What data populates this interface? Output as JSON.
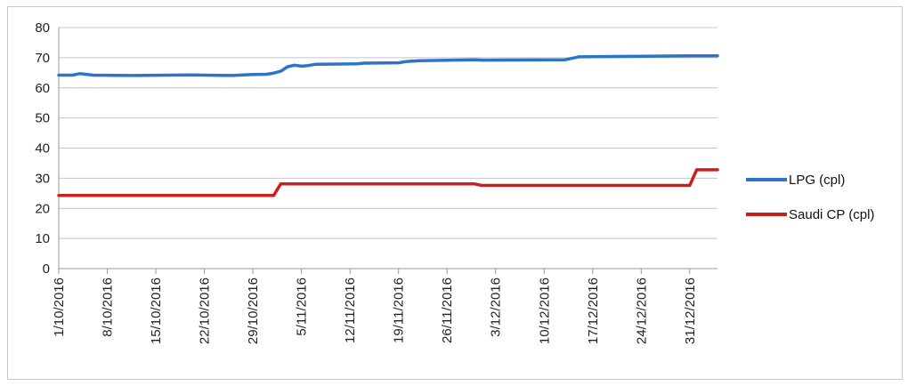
{
  "chart_data": {
    "type": "line",
    "title": "",
    "xlabel": "",
    "ylabel": "",
    "ylim": [
      0,
      80
    ],
    "yticks": [
      0,
      10,
      20,
      30,
      40,
      50,
      60,
      70,
      80
    ],
    "x_start": "1/10/2016",
    "x_end": "4/01/2017",
    "x_tick_labels": [
      "1/10/2016",
      "8/10/2016",
      "15/10/2016",
      "22/10/2016",
      "29/10/2016",
      "5/11/2016",
      "12/11/2016",
      "19/11/2016",
      "26/11/2016",
      "3/12/2016",
      "10/12/2016",
      "17/12/2016",
      "24/12/2016",
      "31/12/2016"
    ],
    "grid": "horizontal",
    "legend": "right",
    "series": [
      {
        "name": "LPG (cpl)",
        "color": "#2e74c6",
        "points": [
          [
            "1/10/2016",
            64.2
          ],
          [
            "3/10/2016",
            64.2
          ],
          [
            "4/10/2016",
            64.7
          ],
          [
            "6/10/2016",
            64.2
          ],
          [
            "12/10/2016",
            64.1
          ],
          [
            "20/10/2016",
            64.3
          ],
          [
            "26/10/2016",
            64.1
          ],
          [
            "29/10/2016",
            64.4
          ],
          [
            "31/10/2016",
            64.5
          ],
          [
            "1/11/2016",
            64.9
          ],
          [
            "2/11/2016",
            65.5
          ],
          [
            "3/11/2016",
            67.0
          ],
          [
            "4/11/2016",
            67.5
          ],
          [
            "5/11/2016",
            67.2
          ],
          [
            "6/11/2016",
            67.4
          ],
          [
            "7/11/2016",
            67.8
          ],
          [
            "13/11/2016",
            68.0
          ],
          [
            "14/11/2016",
            68.2
          ],
          [
            "19/11/2016",
            68.3
          ],
          [
            "20/11/2016",
            68.7
          ],
          [
            "22/11/2016",
            69.0
          ],
          [
            "30/11/2016",
            69.3
          ],
          [
            "1/12/2016",
            69.2
          ],
          [
            "13/12/2016",
            69.3
          ],
          [
            "15/12/2016",
            70.3
          ],
          [
            "24/12/2016",
            70.5
          ],
          [
            "31/12/2016",
            70.6
          ],
          [
            "4/01/2017",
            70.6
          ]
        ]
      },
      {
        "name": "Saudi CP (cpl)",
        "color": "#c8201f",
        "points": [
          [
            "1/10/2016",
            24.3
          ],
          [
            "1/11/2016",
            24.3
          ],
          [
            "2/11/2016",
            28.1
          ],
          [
            "30/11/2016",
            28.1
          ],
          [
            "1/12/2016",
            27.6
          ],
          [
            "31/12/2016",
            27.6
          ],
          [
            "1/01/2017",
            32.8
          ],
          [
            "4/01/2017",
            32.8
          ]
        ]
      }
    ]
  }
}
